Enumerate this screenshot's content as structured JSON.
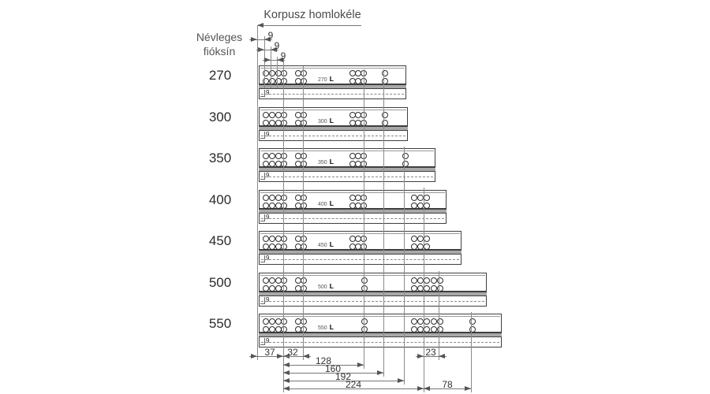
{
  "header": {
    "title": "Korpusz homlokéle"
  },
  "left_label": {
    "line1": "Névleges",
    "line2": "fióksín"
  },
  "dims": {
    "nine1": "9",
    "nine2": "9",
    "nine3": "9",
    "d37": "37",
    "d32": "32",
    "d128": "128",
    "d160": "160",
    "d192": "192",
    "d224": "224",
    "d23": "23",
    "d78": "78"
  },
  "rows": [
    {
      "label": "270",
      "slide_code": "270",
      "slide_suffix": "L",
      "rail_mark": "9"
    },
    {
      "label": "300",
      "slide_code": "300",
      "slide_suffix": "L",
      "rail_mark": "9"
    },
    {
      "label": "350",
      "slide_code": "350",
      "slide_suffix": "L",
      "rail_mark": "9"
    },
    {
      "label": "400",
      "slide_code": "400",
      "slide_suffix": "L",
      "rail_mark": "9"
    },
    {
      "label": "450",
      "slide_code": "450",
      "slide_suffix": "L",
      "rail_mark": "9"
    },
    {
      "label": "500",
      "slide_code": "500",
      "slide_suffix": "L",
      "rail_mark": "9"
    },
    {
      "label": "550",
      "slide_code": "550",
      "slide_suffix": "L",
      "rail_mark": "9"
    }
  ]
}
